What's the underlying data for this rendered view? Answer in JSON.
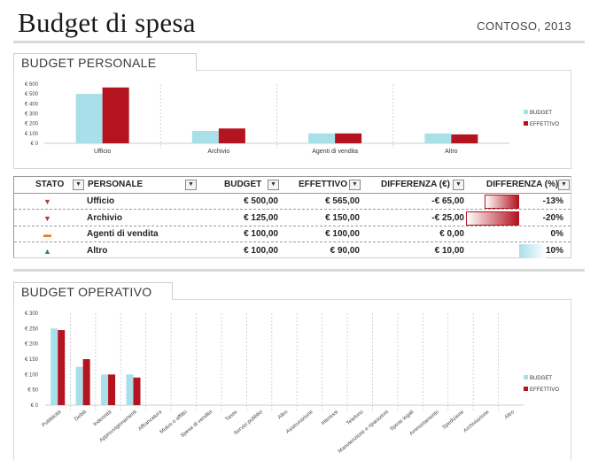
{
  "header": {
    "title": "Budget di spesa",
    "company": "CONTOSO, 2013"
  },
  "personal": {
    "section_title": "BUDGET PERSONALE",
    "chart_data": {
      "type": "bar",
      "categories": [
        "Ufficio",
        "Archivio",
        "Agenti di vendita",
        "Altro"
      ],
      "series": [
        {
          "name": "BUDGET",
          "values": [
            500,
            125,
            100,
            100
          ],
          "color": "#a8dfe9"
        },
        {
          "name": "EFFETTIVO",
          "values": [
            565,
            150,
            100,
            90
          ],
          "color": "#b3141f"
        }
      ],
      "ylim": [
        0,
        600
      ],
      "yticks": [
        "€ 0",
        "€ 100",
        "€ 200",
        "€ 300",
        "€ 400",
        "€ 500",
        "€ 600"
      ],
      "legend": "right",
      "grid": false
    }
  },
  "table": {
    "headers": [
      "STATO",
      "PERSONALE",
      "BUDGET",
      "EFFETTIVO",
      "DIFFERENZA (€)",
      "DIFFERENZA (%)"
    ],
    "rows": [
      {
        "status": "down",
        "name": "Ufficio",
        "budget": "€ 500,00",
        "actual": "€ 565,00",
        "diff": "-€ 65,00",
        "pct": "-13%",
        "pct_value": -0.13
      },
      {
        "status": "down",
        "name": "Archivio",
        "budget": "€ 125,00",
        "actual": "€ 150,00",
        "diff": "-€ 25,00",
        "pct": "-20%",
        "pct_value": -0.2
      },
      {
        "status": "flat",
        "name": "Agenti di vendita",
        "budget": "€ 100,00",
        "actual": "€ 100,00",
        "diff": "€ 0,00",
        "pct": "0%",
        "pct_value": 0
      },
      {
        "status": "up",
        "name": "Altro",
        "budget": "€ 100,00",
        "actual": "€ 90,00",
        "diff": "€ 10,00",
        "pct": "10%",
        "pct_value": 0.1
      }
    ],
    "colors": {
      "down": "#c0392b",
      "flat": "#e67e22",
      "up": "#2e8b3d",
      "neg_bar": "#b3141f",
      "pos_bar": "#a8dfe9"
    }
  },
  "operative": {
    "section_title": "BUDGET OPERATIVO",
    "chart_data": {
      "type": "bar",
      "categories": [
        "Pubblicità",
        "Debiti",
        "Indennità",
        "Approvvigionamenti",
        "Affrancatura",
        "Mutuo o affitto",
        "Spese di vendita",
        "Tasse",
        "Servizi pubblici",
        "Altro",
        "Assicurazione",
        "Interessi",
        "Telefono",
        "Manutenzione e riparazioni",
        "Spese legali",
        "Ammortamento",
        "Spedizione",
        "Archiviazione",
        "Altro"
      ],
      "series": [
        {
          "name": "BUDGET",
          "values": [
            250,
            125,
            100,
            100,
            0,
            0,
            0,
            0,
            0,
            0,
            0,
            0,
            0,
            0,
            0,
            0,
            0,
            0,
            0
          ],
          "color": "#a8dfe9"
        },
        {
          "name": "EFFETTIVO",
          "values": [
            245,
            150,
            100,
            90,
            0,
            0,
            0,
            0,
            0,
            0,
            0,
            0,
            0,
            0,
            0,
            0,
            0,
            0,
            0
          ],
          "color": "#b3141f"
        }
      ],
      "ylim": [
        0,
        300
      ],
      "yticks": [
        "€ 0",
        "€ 50",
        "€ 100",
        "€ 150",
        "€ 200",
        "€ 250",
        "€ 300"
      ],
      "legend": "right",
      "grid": false
    }
  }
}
